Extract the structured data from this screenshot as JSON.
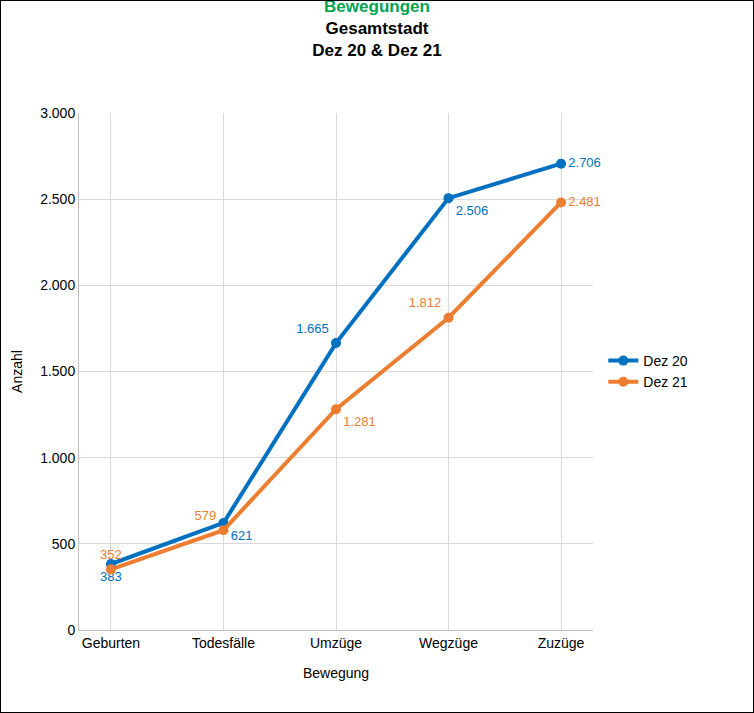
{
  "chart_data": {
    "type": "line",
    "title": "Bewegungen",
    "subtitle": "Gesamtstadt\nDez 20 & Dez 21",
    "x_label": "Bewegung",
    "y_label": "Anzahl",
    "categories": [
      "Geburten",
      "Todesfälle",
      "Umzüge",
      "Wegzüge",
      "Zuzüge"
    ],
    "series": [
      {
        "name": "Dez 20",
        "color": "#0070c0",
        "values": [
          383,
          621,
          1665,
          2506,
          2706
        ],
        "value_labels": [
          "383",
          "621",
          "1.665",
          "2.506",
          "2.706"
        ]
      },
      {
        "name": "Dez 21",
        "color": "#ed7d31",
        "values": [
          352,
          579,
          1281,
          1812,
          2481
        ],
        "value_labels": [
          "352",
          "579",
          "1.281",
          "1.812",
          "2.481"
        ]
      }
    ],
    "ylim": [
      0,
      3000
    ],
    "yticks": [
      0,
      500,
      {
        "value": 1000,
        "label": "1.000"
      },
      {
        "value": 1500,
        "label": "1.500"
      },
      {
        "value": 2000,
        "label": "2.000"
      },
      {
        "value": 2500,
        "label": "2.500"
      },
      {
        "value": 3000,
        "label": "3.000"
      }
    ],
    "grid": true,
    "legend": "right",
    "data_labels": true,
    "marker": "circle"
  }
}
